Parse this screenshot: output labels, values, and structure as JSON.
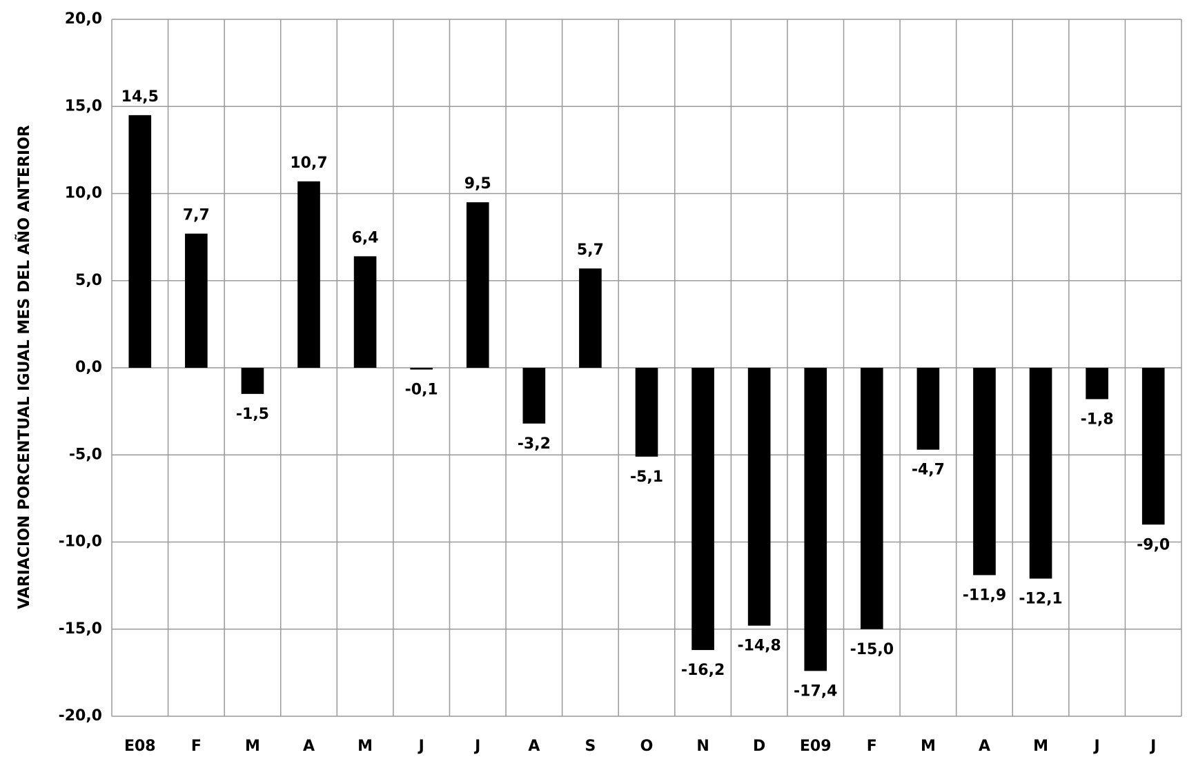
{
  "chart_data": {
    "type": "bar",
    "y_label": "VARIACION PORCENTUAL IGUAL MES DEL AÑO ANTERIOR",
    "categories": [
      "E08",
      "F",
      "M",
      "A",
      "M",
      "J",
      "J",
      "A",
      "S",
      "O",
      "N",
      "D",
      "E09",
      "F",
      "M",
      "A",
      "M",
      "J",
      "J"
    ],
    "values": [
      14.5,
      7.7,
      -1.5,
      10.7,
      6.4,
      -0.1,
      9.5,
      -3.2,
      5.7,
      -5.1,
      -16.2,
      -14.8,
      -17.4,
      -15.0,
      -4.7,
      -11.9,
      -12.1,
      -1.8,
      -9.0
    ],
    "value_labels": [
      "14,5",
      "7,7",
      "-1,5",
      "10,7",
      "6,4",
      "-0,1",
      "9,5",
      "-3,2",
      "5,7",
      "-5,1",
      "-16,2",
      "-14,8",
      "-17,4",
      "-15,0",
      "-4,7",
      "-11,9",
      "-12,1",
      "-1,8",
      "-9,0"
    ],
    "color": "#000000",
    "ylim": [
      -20,
      20
    ],
    "yticks": [
      {
        "value": -20,
        "label": "-20,0"
      },
      {
        "value": -15,
        "label": "-15,0"
      },
      {
        "value": -10,
        "label": "-10,0"
      },
      {
        "value": -5,
        "label": "-5,0"
      },
      {
        "value": 0,
        "label": "0,0"
      },
      {
        "value": 5,
        "label": "5,0"
      },
      {
        "value": 10,
        "label": "10,0"
      },
      {
        "value": 15,
        "label": "15,0"
      },
      {
        "value": 20,
        "label": "20,0"
      }
    ],
    "grid": true
  }
}
